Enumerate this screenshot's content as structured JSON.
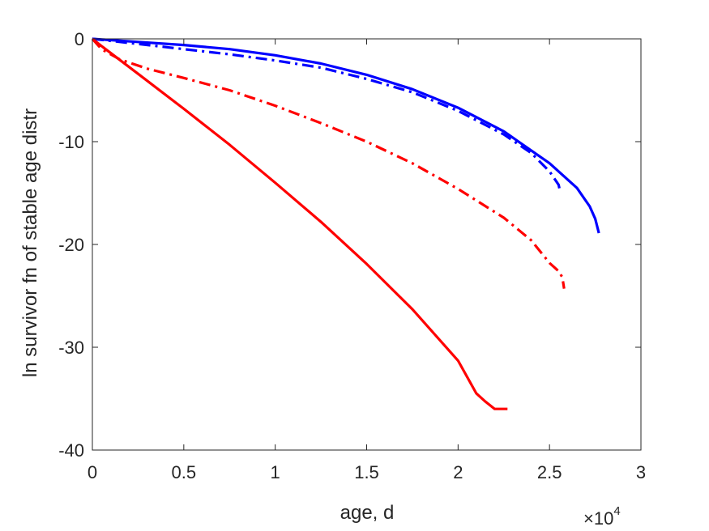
{
  "chart_data": {
    "type": "line",
    "title": "",
    "xlabel": "age, d",
    "ylabel": "ln survivor fn of stable age distr",
    "x_multiplier_label": "×10",
    "x_multiplier_exponent": "4",
    "xlim": [
      0,
      3
    ],
    "ylim": [
      -40,
      0
    ],
    "xticks": [
      0,
      0.5,
      1,
      1.5,
      2,
      2.5,
      3
    ],
    "xtick_labels": [
      "0",
      "0.5",
      "1",
      "1.5",
      "2",
      "2.5",
      "3"
    ],
    "yticks": [
      0,
      -10,
      -20,
      -30,
      -40
    ],
    "ytick_labels": [
      "0",
      "-10",
      "-20",
      "-30",
      "-40"
    ],
    "grid": false,
    "series": [
      {
        "color": "#0000ff",
        "style": "solid",
        "points": [
          [
            0,
            0
          ],
          [
            0.25,
            -0.3
          ],
          [
            0.5,
            -0.6
          ],
          [
            0.75,
            -1.0
          ],
          [
            1.0,
            -1.6
          ],
          [
            1.25,
            -2.4
          ],
          [
            1.5,
            -3.5
          ],
          [
            1.75,
            -4.9
          ],
          [
            2.0,
            -6.7
          ],
          [
            2.25,
            -9.0
          ],
          [
            2.5,
            -12.1
          ],
          [
            2.65,
            -14.5
          ],
          [
            2.72,
            -16.3
          ],
          [
            2.75,
            -17.5
          ],
          [
            2.77,
            -18.9
          ]
        ]
      },
      {
        "color": "#0000ff",
        "style": "dashdot",
        "points": [
          [
            0,
            0
          ],
          [
            0.25,
            -0.5
          ],
          [
            0.5,
            -1.0
          ],
          [
            0.75,
            -1.5
          ],
          [
            1.0,
            -2.1
          ],
          [
            1.25,
            -2.8
          ],
          [
            1.5,
            -3.9
          ],
          [
            1.75,
            -5.2
          ],
          [
            2.0,
            -7.0
          ],
          [
            2.25,
            -9.3
          ],
          [
            2.4,
            -11.1
          ],
          [
            2.5,
            -12.9
          ],
          [
            2.55,
            -14.2
          ],
          [
            2.56,
            -15.0
          ]
        ]
      },
      {
        "color": "#ff0000",
        "style": "dashdot",
        "points": [
          [
            0,
            0
          ],
          [
            0.05,
            -1.0
          ],
          [
            0.15,
            -2.0
          ],
          [
            0.3,
            -2.9
          ],
          [
            0.5,
            -3.8
          ],
          [
            0.75,
            -5.0
          ],
          [
            1.0,
            -6.5
          ],
          [
            1.25,
            -8.2
          ],
          [
            1.5,
            -10.0
          ],
          [
            1.75,
            -12.1
          ],
          [
            2.0,
            -14.6
          ],
          [
            2.25,
            -17.4
          ],
          [
            2.4,
            -19.6
          ],
          [
            2.5,
            -21.8
          ],
          [
            2.55,
            -22.6
          ],
          [
            2.57,
            -23.2
          ],
          [
            2.58,
            -24.3
          ]
        ]
      },
      {
        "color": "#ff0000",
        "style": "solid",
        "points": [
          [
            0,
            0
          ],
          [
            0.05,
            -0.7
          ],
          [
            0.25,
            -3.4
          ],
          [
            0.5,
            -6.8
          ],
          [
            0.75,
            -10.3
          ],
          [
            1.0,
            -14.0
          ],
          [
            1.25,
            -17.8
          ],
          [
            1.5,
            -21.9
          ],
          [
            1.75,
            -26.3
          ],
          [
            2.0,
            -31.3
          ],
          [
            2.1,
            -34.5
          ],
          [
            2.15,
            -35.3
          ],
          [
            2.2,
            -36.0
          ],
          [
            2.27,
            -36.0
          ]
        ]
      }
    ]
  }
}
